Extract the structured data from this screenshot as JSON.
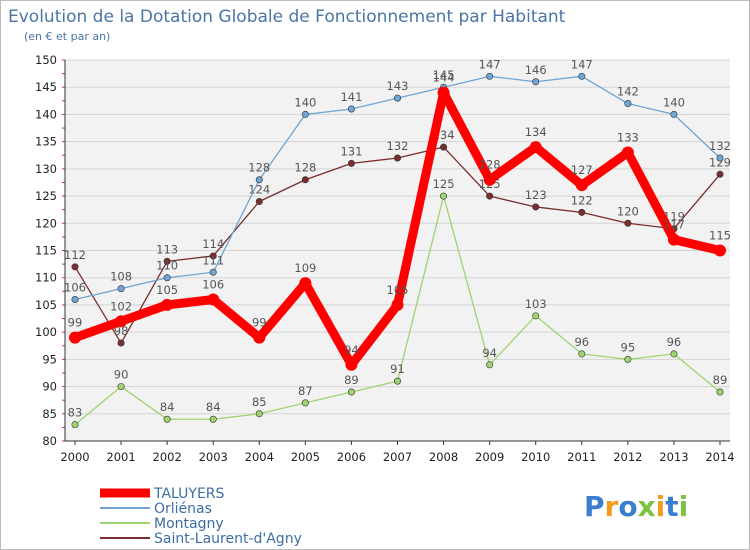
{
  "chart_data": {
    "type": "line",
    "title": "Evolution de la Dotation Globale de Fonctionnement par Habitant",
    "subtitle": "(en € et par an)",
    "xlabel": "",
    "ylabel": "",
    "x": [
      "2000",
      "2001",
      "2002",
      "2003",
      "2004",
      "2005",
      "2006",
      "2007",
      "2008",
      "2009",
      "2010",
      "2011",
      "2012",
      "2013",
      "2014"
    ],
    "ylim": [
      80,
      150
    ],
    "yticks": [
      80,
      85,
      90,
      95,
      100,
      105,
      110,
      115,
      120,
      125,
      130,
      135,
      140,
      145,
      150
    ],
    "grid": true,
    "legend_position": "bottom-left",
    "series": [
      {
        "name": "TALUYERS",
        "color": "#ff0000",
        "values": [
          99,
          102,
          105,
          106,
          99,
          109,
          94,
          105,
          144,
          128,
          134,
          127,
          133,
          117,
          115
        ],
        "labels": [
          "99",
          "102",
          "105",
          "106",
          "99",
          "109",
          "94",
          "105",
          "144",
          "128",
          "134",
          "127",
          "133",
          "117",
          "115"
        ]
      },
      {
        "name": "Orliénas",
        "color": "#6ea4d6",
        "values": [
          106,
          108,
          110,
          111,
          128,
          140,
          141,
          143,
          145,
          147,
          146,
          147,
          142,
          140,
          132
        ],
        "labels": [
          "106",
          "108",
          "110",
          "111",
          "128",
          "140",
          "141",
          "143",
          "145",
          "147",
          "146",
          "147",
          "142",
          "140",
          "132"
        ]
      },
      {
        "name": "Montagny",
        "color": "#9ed46e",
        "values": [
          83,
          90,
          84,
          84,
          85,
          87,
          89,
          91,
          125,
          94,
          103,
          96,
          95,
          96,
          89
        ],
        "labels": [
          "83",
          "90",
          "84",
          "84",
          "85",
          "87",
          "89",
          "91",
          "125",
          "94",
          "103",
          "96",
          "95",
          "96",
          "89"
        ]
      },
      {
        "name": "Saint-Laurent-d'Agny",
        "color": "#7a2e2e",
        "values": [
          112,
          98,
          113,
          114,
          124,
          128,
          131,
          132,
          134,
          125,
          123,
          122,
          120,
          119,
          129
        ],
        "labels": [
          "112",
          "98",
          "113",
          "114",
          "124",
          "128",
          "131",
          "132",
          "134",
          "125",
          "123",
          "122",
          "120",
          "119",
          "129"
        ]
      }
    ]
  },
  "logo": {
    "text": "Proxiti"
  }
}
